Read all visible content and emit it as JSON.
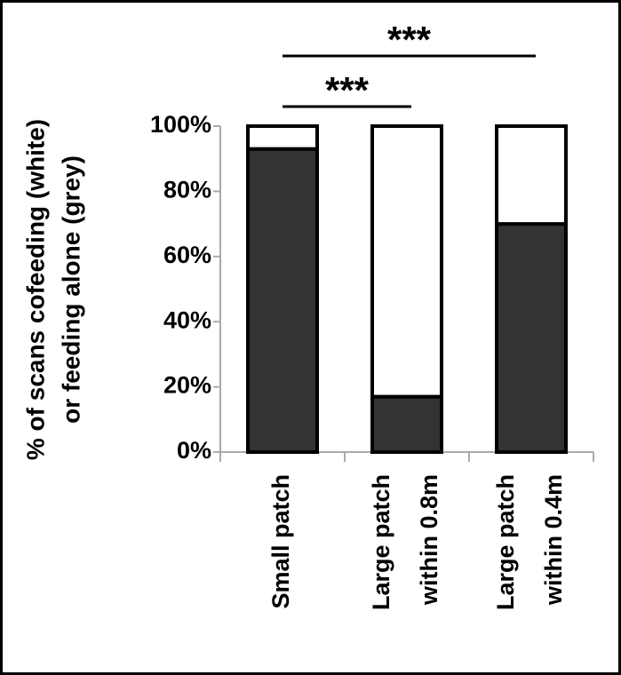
{
  "chart_data": {
    "type": "stacked_bar",
    "ylabel": [
      "% of scans cofeeding (white)",
      "or feeding alone (grey)"
    ],
    "categories": [
      [
        "Small patch"
      ],
      [
        "Large patch",
        "within 0.8m"
      ],
      [
        "Large patch",
        "within 0.4m"
      ]
    ],
    "series": [
      {
        "color": "#333333",
        "values": [
          93,
          17,
          70
        ]
      },
      {
        "color": "#ffffff",
        "values": [
          7,
          83,
          30
        ]
      }
    ],
    "ylim": [
      0,
      100
    ],
    "yticks": [
      {
        "value": 0,
        "label": "0%"
      },
      {
        "value": 20,
        "label": "20%"
      },
      {
        "value": 40,
        "label": "40%"
      },
      {
        "value": 60,
        "label": "60%"
      },
      {
        "value": 80,
        "label": "80%"
      },
      {
        "value": 100,
        "label": "100%"
      }
    ],
    "annotations": [
      "***",
      "***"
    ]
  }
}
